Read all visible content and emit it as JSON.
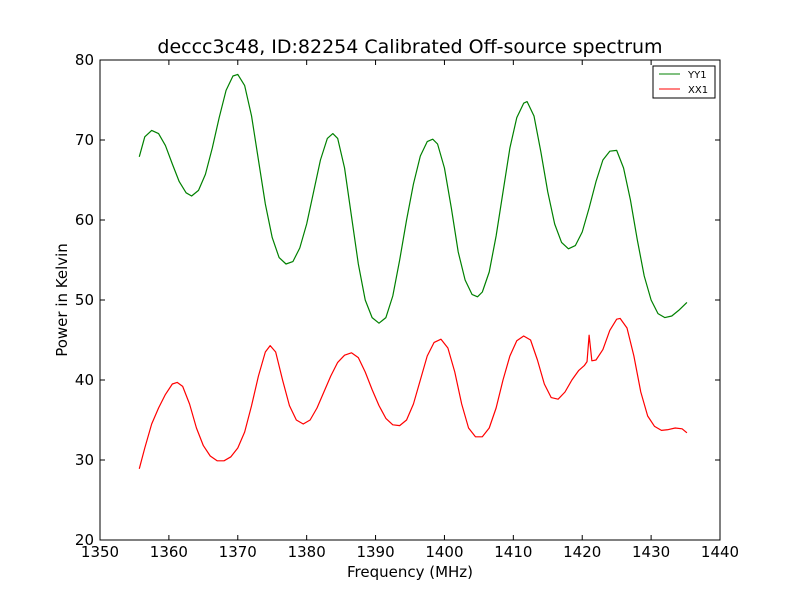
{
  "chart_data": {
    "type": "line",
    "title": "deccc3c48, ID:82254 Calibrated Off-source spectrum",
    "xlabel": "Frequency (MHz)",
    "ylabel": "Power in Kelvin",
    "xlim": [
      1350,
      1440
    ],
    "ylim": [
      20,
      80
    ],
    "x_ticks": [
      1350,
      1360,
      1370,
      1380,
      1390,
      1400,
      1410,
      1420,
      1430,
      1440
    ],
    "y_ticks": [
      20,
      30,
      40,
      50,
      60,
      70,
      80
    ],
    "grid": false,
    "legend_position": "top-right",
    "series": [
      {
        "name": "YY1",
        "color": "#008000",
        "points": [
          [
            1355.7,
            67.9
          ],
          [
            1356.5,
            70.4
          ],
          [
            1357.5,
            71.2
          ],
          [
            1358.5,
            70.8
          ],
          [
            1359.5,
            69.3
          ],
          [
            1360.5,
            67.0
          ],
          [
            1361.5,
            64.8
          ],
          [
            1362.5,
            63.4
          ],
          [
            1363.3,
            63.0
          ],
          [
            1364.3,
            63.7
          ],
          [
            1365.3,
            65.7
          ],
          [
            1366.3,
            69.0
          ],
          [
            1367.3,
            72.8
          ],
          [
            1368.3,
            76.2
          ],
          [
            1369.3,
            78.0
          ],
          [
            1370.0,
            78.2
          ],
          [
            1371.0,
            76.8
          ],
          [
            1372.0,
            73.0
          ],
          [
            1373.0,
            67.5
          ],
          [
            1374.0,
            62.0
          ],
          [
            1375.0,
            57.8
          ],
          [
            1376.0,
            55.3
          ],
          [
            1377.0,
            54.5
          ],
          [
            1378.0,
            54.8
          ],
          [
            1379.0,
            56.5
          ],
          [
            1380.0,
            59.5
          ],
          [
            1381.0,
            63.5
          ],
          [
            1382.0,
            67.5
          ],
          [
            1383.0,
            70.2
          ],
          [
            1383.8,
            70.8
          ],
          [
            1384.5,
            70.2
          ],
          [
            1385.5,
            66.5
          ],
          [
            1386.5,
            60.5
          ],
          [
            1387.5,
            54.5
          ],
          [
            1388.5,
            50.0
          ],
          [
            1389.5,
            47.8
          ],
          [
            1390.5,
            47.1
          ],
          [
            1391.5,
            47.8
          ],
          [
            1392.5,
            50.5
          ],
          [
            1393.5,
            55.0
          ],
          [
            1394.5,
            60.0
          ],
          [
            1395.5,
            64.5
          ],
          [
            1396.5,
            68.0
          ],
          [
            1397.5,
            69.8
          ],
          [
            1398.3,
            70.1
          ],
          [
            1399.0,
            69.5
          ],
          [
            1400.0,
            66.5
          ],
          [
            1401.0,
            61.5
          ],
          [
            1402.0,
            56.0
          ],
          [
            1403.0,
            52.5
          ],
          [
            1404.0,
            50.7
          ],
          [
            1404.8,
            50.4
          ],
          [
            1405.5,
            51.0
          ],
          [
            1406.5,
            53.5
          ],
          [
            1407.5,
            58.0
          ],
          [
            1408.5,
            63.5
          ],
          [
            1409.5,
            69.0
          ],
          [
            1410.5,
            72.8
          ],
          [
            1411.5,
            74.6
          ],
          [
            1412.0,
            74.8
          ],
          [
            1413.0,
            73.0
          ],
          [
            1414.0,
            68.5
          ],
          [
            1415.0,
            63.5
          ],
          [
            1416.0,
            59.5
          ],
          [
            1417.0,
            57.2
          ],
          [
            1418.0,
            56.4
          ],
          [
            1419.0,
            56.8
          ],
          [
            1420.0,
            58.5
          ],
          [
            1421.0,
            61.5
          ],
          [
            1422.0,
            64.8
          ],
          [
            1423.0,
            67.5
          ],
          [
            1424.0,
            68.6
          ],
          [
            1425.0,
            68.7
          ],
          [
            1426.0,
            66.5
          ],
          [
            1427.0,
            62.5
          ],
          [
            1428.0,
            57.5
          ],
          [
            1429.0,
            53.0
          ],
          [
            1430.0,
            50.0
          ],
          [
            1431.0,
            48.3
          ],
          [
            1432.0,
            47.8
          ],
          [
            1433.0,
            48.0
          ],
          [
            1434.0,
            48.7
          ],
          [
            1435.2,
            49.7
          ]
        ]
      },
      {
        "name": "XX1",
        "color": "#ff0000",
        "points": [
          [
            1355.7,
            28.9
          ],
          [
            1356.5,
            31.5
          ],
          [
            1357.5,
            34.5
          ],
          [
            1358.5,
            36.5
          ],
          [
            1359.5,
            38.2
          ],
          [
            1360.5,
            39.5
          ],
          [
            1361.2,
            39.7
          ],
          [
            1362.0,
            39.2
          ],
          [
            1363.0,
            37.0
          ],
          [
            1364.0,
            34.0
          ],
          [
            1365.0,
            31.8
          ],
          [
            1366.0,
            30.5
          ],
          [
            1367.0,
            29.9
          ],
          [
            1368.0,
            29.9
          ],
          [
            1369.0,
            30.4
          ],
          [
            1370.0,
            31.5
          ],
          [
            1371.0,
            33.5
          ],
          [
            1372.0,
            36.8
          ],
          [
            1373.0,
            40.5
          ],
          [
            1374.0,
            43.5
          ],
          [
            1374.7,
            44.3
          ],
          [
            1375.5,
            43.5
          ],
          [
            1376.5,
            40.0
          ],
          [
            1377.5,
            36.8
          ],
          [
            1378.5,
            35.0
          ],
          [
            1379.5,
            34.5
          ],
          [
            1380.5,
            35.0
          ],
          [
            1381.5,
            36.5
          ],
          [
            1382.5,
            38.5
          ],
          [
            1383.5,
            40.5
          ],
          [
            1384.5,
            42.2
          ],
          [
            1385.5,
            43.1
          ],
          [
            1386.5,
            43.4
          ],
          [
            1387.5,
            42.8
          ],
          [
            1388.5,
            41.0
          ],
          [
            1389.5,
            38.8
          ],
          [
            1390.5,
            36.8
          ],
          [
            1391.5,
            35.2
          ],
          [
            1392.5,
            34.4
          ],
          [
            1393.5,
            34.3
          ],
          [
            1394.5,
            35.0
          ],
          [
            1395.5,
            37.0
          ],
          [
            1396.5,
            40.0
          ],
          [
            1397.5,
            43.0
          ],
          [
            1398.5,
            44.7
          ],
          [
            1399.5,
            45.1
          ],
          [
            1400.5,
            44.0
          ],
          [
            1401.5,
            41.0
          ],
          [
            1402.5,
            37.0
          ],
          [
            1403.5,
            34.0
          ],
          [
            1404.5,
            32.9
          ],
          [
            1405.5,
            32.9
          ],
          [
            1406.5,
            34.0
          ],
          [
            1407.5,
            36.5
          ],
          [
            1408.5,
            40.0
          ],
          [
            1409.5,
            43.0
          ],
          [
            1410.5,
            44.9
          ],
          [
            1411.5,
            45.5
          ],
          [
            1412.5,
            45.0
          ],
          [
            1413.5,
            42.5
          ],
          [
            1414.5,
            39.5
          ],
          [
            1415.5,
            37.8
          ],
          [
            1416.5,
            37.6
          ],
          [
            1417.5,
            38.5
          ],
          [
            1418.5,
            40.0
          ],
          [
            1419.5,
            41.2
          ],
          [
            1420.3,
            41.8
          ],
          [
            1420.7,
            42.3
          ],
          [
            1421.0,
            45.6
          ],
          [
            1421.4,
            42.4
          ],
          [
            1422.0,
            42.5
          ],
          [
            1423.0,
            43.8
          ],
          [
            1424.0,
            46.2
          ],
          [
            1425.0,
            47.6
          ],
          [
            1425.5,
            47.7
          ],
          [
            1426.5,
            46.5
          ],
          [
            1427.5,
            43.0
          ],
          [
            1428.5,
            38.5
          ],
          [
            1429.5,
            35.5
          ],
          [
            1430.5,
            34.2
          ],
          [
            1431.5,
            33.7
          ],
          [
            1432.5,
            33.8
          ],
          [
            1433.5,
            34.0
          ],
          [
            1434.5,
            33.9
          ],
          [
            1435.2,
            33.4
          ]
        ]
      }
    ]
  }
}
